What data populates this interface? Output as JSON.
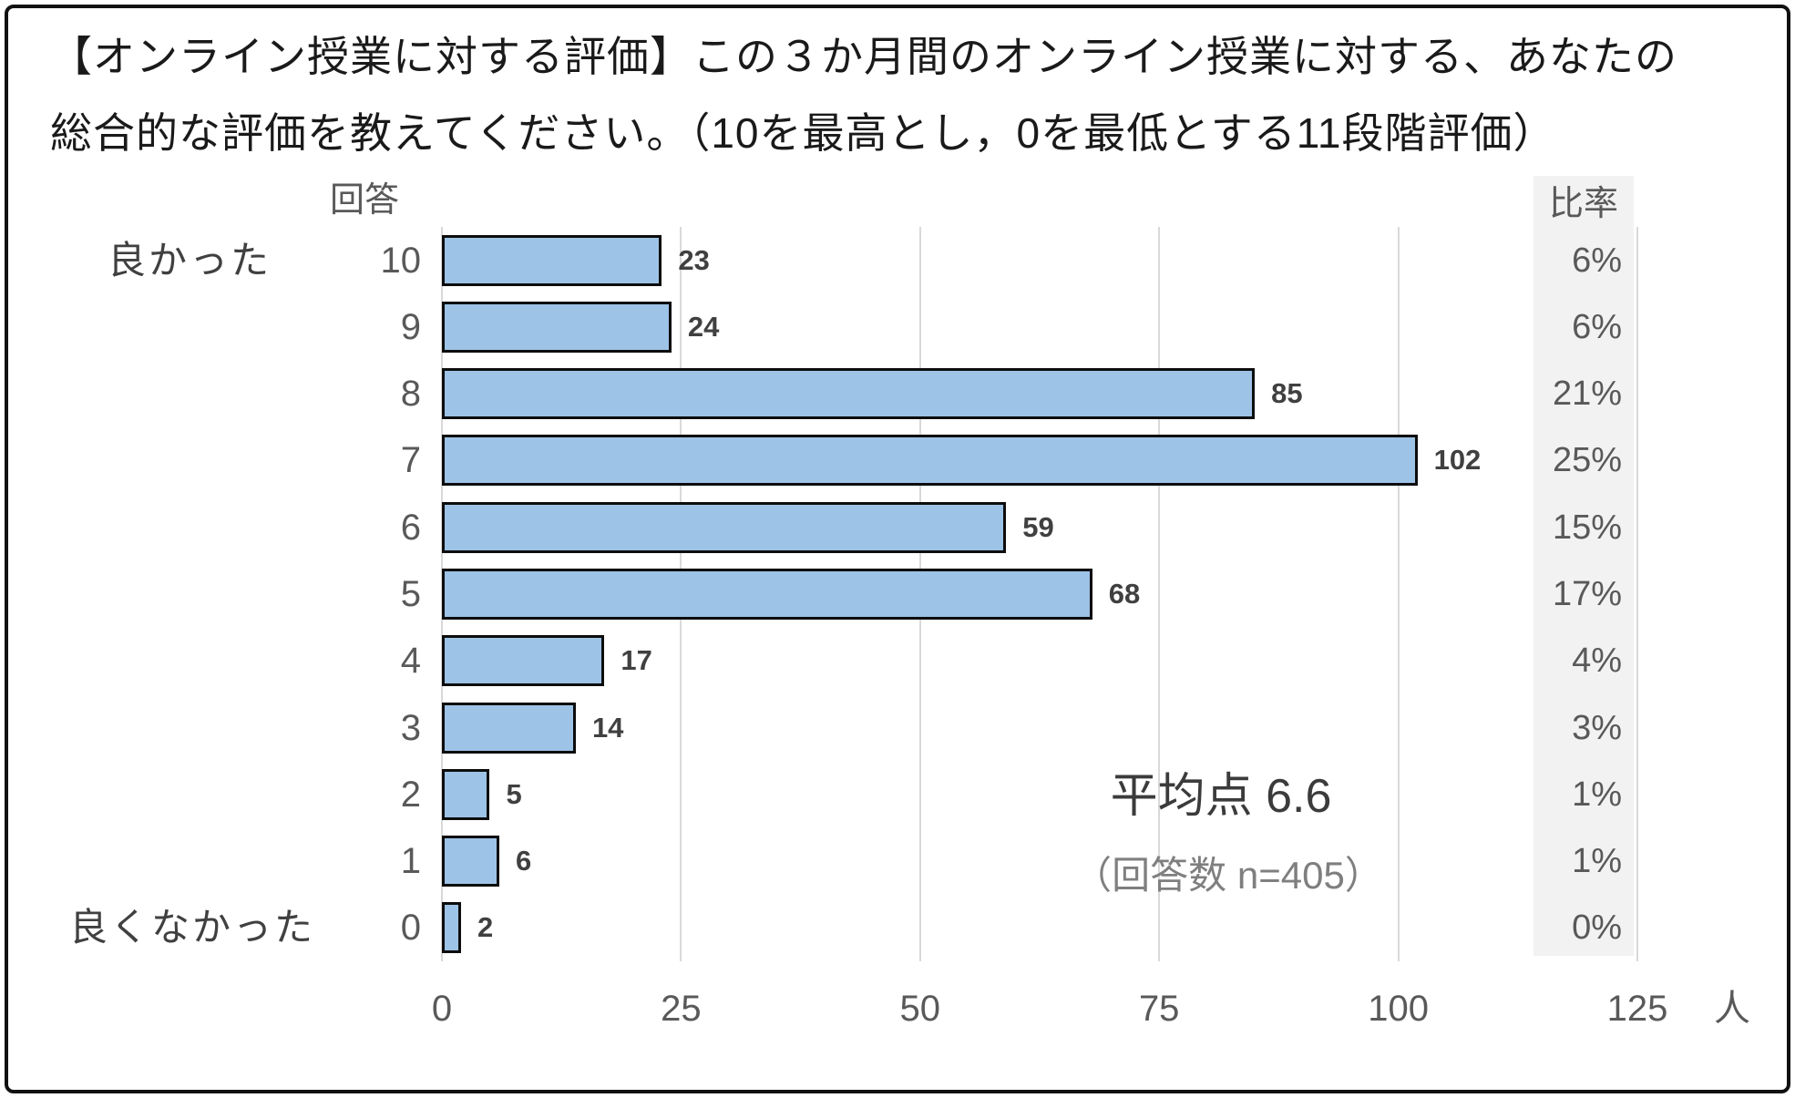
{
  "title": {
    "line1": "【オンライン授業に対する評価】この３か月間のオンライン授業に対する、あなたの",
    "line2": "総合的な評価を教えてください。（10を最高とし，0を最低とする11段階評価）"
  },
  "chart_data": {
    "type": "bar",
    "orientation": "horizontal",
    "column_headers": {
      "left": "回答",
      "right": "比率"
    },
    "axis_endpoint_labels": {
      "top": "良かった",
      "bottom": "良くなかった"
    },
    "categories": [
      "10",
      "9",
      "8",
      "7",
      "6",
      "5",
      "4",
      "3",
      "2",
      "1",
      "0"
    ],
    "values": [
      23,
      24,
      85,
      102,
      59,
      68,
      17,
      14,
      5,
      6,
      2
    ],
    "percentages": [
      "6%",
      "6%",
      "21%",
      "25%",
      "15%",
      "17%",
      "4%",
      "3%",
      "1%",
      "1%",
      "0%"
    ],
    "x_ticks": [
      0,
      25,
      50,
      75,
      100,
      125
    ],
    "x_range": [
      0,
      125
    ],
    "x_unit": "人",
    "grid": true,
    "legend": "none",
    "bar_color": "#9DC3E6",
    "bar_border_color": "#0d0d0d",
    "gridline_color": "#d9d9d9",
    "rate_band_color": "#f2f2f2",
    "annotations": {
      "average_label": "平均点 6.6",
      "n_label": "（回答数 n=405）"
    }
  }
}
